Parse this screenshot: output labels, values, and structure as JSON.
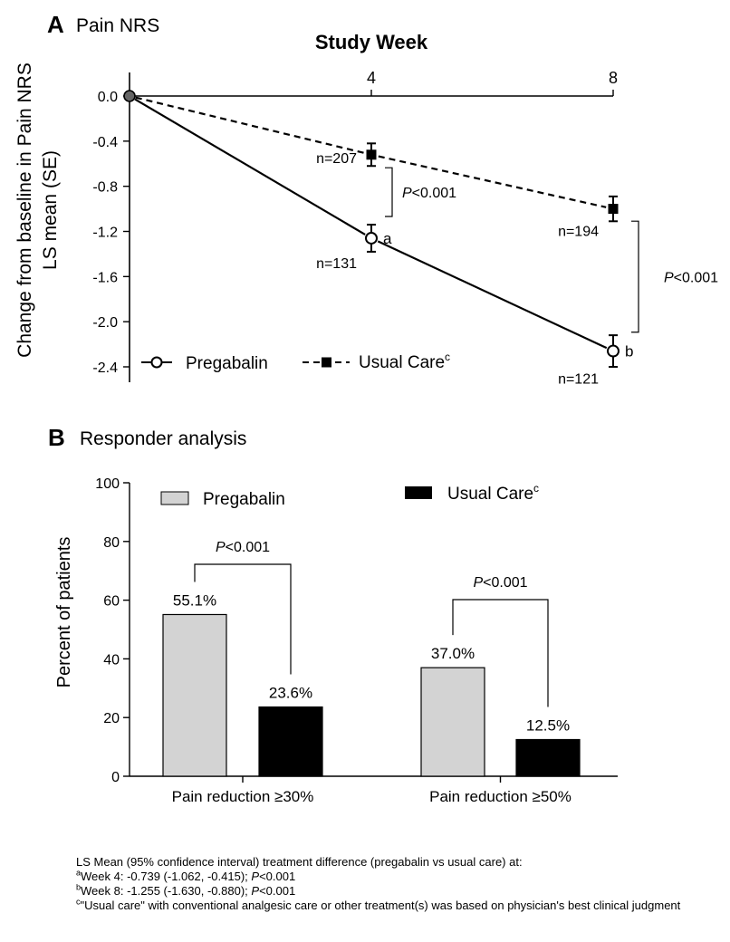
{
  "panel_a": {
    "letter": "A",
    "title": "Pain NRS"
  },
  "panel_b": {
    "letter": "B",
    "title": "Responder analysis"
  },
  "chart_data": [
    {
      "type": "line",
      "panel": "A",
      "title": "Pain NRS",
      "xlabel": "Study Week",
      "ylabel_lines": [
        "Change from baseline in Pain NRS",
        "LS mean (SE)"
      ],
      "x_ticks": [
        "4",
        "8"
      ],
      "y_ticks": [
        "0.0",
        "-0.4",
        "-0.8",
        "-1.2",
        "-1.6",
        "-2.0",
        "-2.4"
      ],
      "ylim": [
        -2.5,
        0.1
      ],
      "xlim": [
        0,
        8
      ],
      "grid": false,
      "legend_position": "bottom-left",
      "series": [
        {
          "name": "Pregabalin",
          "line_style": "solid",
          "marker": "open-circle",
          "x": [
            0,
            4,
            8
          ],
          "y": [
            0.0,
            -1.26,
            -2.26
          ],
          "se": [
            0,
            0.12,
            0.14
          ],
          "n_labels": [
            "",
            "n=131",
            "n=121"
          ],
          "point_notes": [
            "",
            "a",
            "b"
          ]
        },
        {
          "name": "Usual Care",
          "name_superscript": "c",
          "line_style": "dashed",
          "marker": "filled-square",
          "x": [
            0,
            4,
            8
          ],
          "y": [
            0.0,
            -0.52,
            -1.0
          ],
          "se": [
            0,
            0.1,
            0.11
          ],
          "n_labels": [
            "",
            "n=207",
            "n=194"
          ]
        }
      ],
      "annotations": [
        {
          "week": 4,
          "text_italic": "P",
          "text": "<0.001"
        },
        {
          "week": 8,
          "text_italic": "P",
          "text": "<0.001"
        }
      ]
    },
    {
      "type": "bar",
      "panel": "B",
      "title": "Responder analysis",
      "ylabel": "Percent of patients",
      "categories": [
        "Pain reduction ≥30%",
        "Pain reduction ≥50%"
      ],
      "ylim": [
        0,
        100
      ],
      "y_ticks": [
        "0",
        "20",
        "40",
        "60",
        "80",
        "100"
      ],
      "grid": false,
      "legend_position": "top",
      "series": [
        {
          "name": "Pregabalin",
          "color": "#d3d3d3",
          "values": [
            55.1,
            37.0
          ],
          "labels": [
            "55.1%",
            "37.0%"
          ]
        },
        {
          "name": "Usual Care",
          "name_superscript": "c",
          "color": "#000000",
          "values": [
            23.6,
            12.5
          ],
          "labels": [
            "23.6%",
            "12.5%"
          ]
        }
      ],
      "annotations": [
        {
          "category": "Pain reduction ≥30%",
          "text_italic": "P",
          "text": "<0.001"
        },
        {
          "category": "Pain reduction ≥50%",
          "text_italic": "P",
          "text": "<0.001"
        }
      ]
    }
  ],
  "footnotes": {
    "intro": "LS Mean (95% confidence interval) treatment difference (pregabalin vs usual care) at:",
    "a_mark": "a",
    "a_text": "Week 4: -0.739 (-1.062, -0.415); ",
    "a_p": "P",
    "a_p_rest": "<0.001",
    "b_mark": "b",
    "b_text": "Week 8: -1.255 (-1.630, -0.880); ",
    "b_p": "P",
    "b_p_rest": "<0.001",
    "c_mark": "c",
    "c_text": "\"Usual care\" with conventional analgesic care or other treatment(s) was based on physician's best clinical judgment"
  }
}
